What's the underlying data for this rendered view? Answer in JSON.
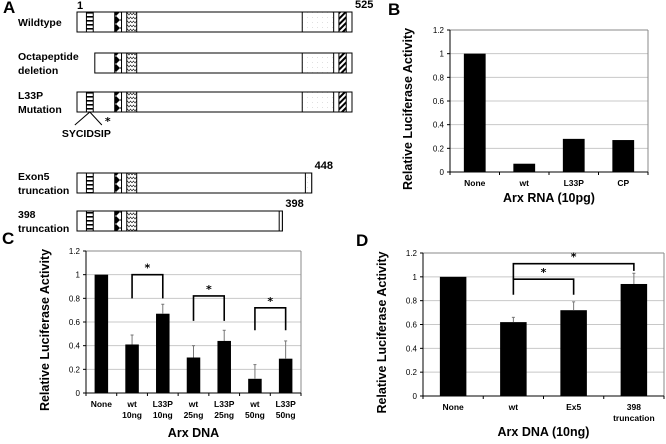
{
  "panel_a": {
    "letter": "A",
    "start_label": "1",
    "constructs": [
      {
        "label_lines": [
          "Wildtype"
        ],
        "end_label": "525",
        "start": 1,
        "end": 525,
        "octapeptide": true,
        "mutated": false,
        "domains": [
          "octapeptide",
          "acidic-diamond",
          "homeodomain-wave",
          "dotted",
          "hatched"
        ]
      },
      {
        "label_lines": [
          "Octapeptide",
          "deletion"
        ],
        "end_label": "",
        "start": 1,
        "end": 525,
        "octapeptide": false,
        "mutated": false,
        "domains": [
          "acidic-diamond",
          "homeodomain-wave",
          "dotted",
          "hatched"
        ]
      },
      {
        "label_lines": [
          "L33P",
          "Mutation"
        ],
        "end_label": "",
        "start": 1,
        "end": 525,
        "octapeptide": true,
        "mutated": true,
        "domains": [
          "octapeptide",
          "acidic-diamond",
          "homeodomain-wave",
          "dotted",
          "hatched"
        ]
      },
      {
        "label_lines": [
          "Exon5",
          "truncation"
        ],
        "end_label": "448",
        "start": 1,
        "end": 448,
        "octapeptide": true,
        "mutated": false,
        "domains": [
          "octapeptide",
          "acidic-diamond",
          "homeodomain-wave",
          "dotted"
        ]
      },
      {
        "label_lines": [
          "398",
          "truncation"
        ],
        "end_label": "398",
        "start": 1,
        "end": 398,
        "octapeptide": true,
        "mutated": false,
        "domains": [
          "octapeptide",
          "acidic-diamond",
          "homeodomain-wave",
          "dotted"
        ]
      }
    ],
    "motif_sequence": "SYCIDSIP",
    "mutation_marker": "*"
  },
  "chart_data": [
    {
      "panel": "B",
      "type": "bar",
      "title": "",
      "xlabel": "Arx RNA (10pg)",
      "ylabel": "Relative Luciferase Activity",
      "ylim": [
        0,
        1.2
      ],
      "yticks": [
        "0",
        "0.2",
        "0.4",
        "0.6",
        "0.8",
        "1",
        "1.2"
      ],
      "grid": true,
      "categories": [
        [
          "None"
        ],
        [
          "wt"
        ],
        [
          "L33P"
        ],
        [
          "CP"
        ]
      ],
      "values": [
        1.0,
        0.07,
        0.28,
        0.27
      ],
      "errors": [],
      "significance": []
    },
    {
      "panel": "C",
      "type": "bar",
      "title": "",
      "xlabel": "Arx DNA",
      "ylabel": "Relative Luciferase Activity",
      "ylim": [
        0,
        1.2
      ],
      "yticks": [
        "0",
        "0.2",
        "0.4",
        "0.6",
        "0.8",
        "1",
        "1.2"
      ],
      "grid": true,
      "categories": [
        [
          "None"
        ],
        [
          "wt",
          "10ng"
        ],
        [
          "L33P",
          "10ng"
        ],
        [
          "wt",
          "25ng"
        ],
        [
          "L33P",
          "25ng"
        ],
        [
          "wt",
          "50ng"
        ],
        [
          "L33P",
          "50ng"
        ]
      ],
      "values": [
        1.0,
        0.41,
        0.67,
        0.3,
        0.44,
        0.12,
        0.29
      ],
      "errors": [
        0,
        0.08,
        0.08,
        0.1,
        0.09,
        0.12,
        0.15
      ],
      "significance": [
        {
          "from": 1,
          "to": 2,
          "level": 1.0,
          "drop_to": 0.8,
          "label": "*"
        },
        {
          "from": 3,
          "to": 4,
          "level": 0.82,
          "drop_to": 0.61,
          "label": "*"
        },
        {
          "from": 5,
          "to": 6,
          "level": 0.72,
          "drop_to": 0.53,
          "label": "*"
        }
      ]
    },
    {
      "panel": "D",
      "type": "bar",
      "title": "",
      "xlabel": "Arx DNA (10ng)",
      "ylabel": "Relative Luciferase Activity",
      "ylim": [
        0,
        1.2
      ],
      "yticks": [
        "0",
        "0.2",
        "0.4",
        "0.6",
        "0.8",
        "1",
        "1.2"
      ],
      "grid": true,
      "categories": [
        [
          "None"
        ],
        [
          "wt"
        ],
        [
          "Ex5"
        ],
        [
          "398",
          "truncation"
        ]
      ],
      "values": [
        1.0,
        0.62,
        0.72,
        0.94
      ],
      "errors": [
        0,
        0.04,
        0.07,
        0.09
      ],
      "significance": [
        {
          "from": 1,
          "to": 2,
          "level": 0.98,
          "drop_to": 0.85,
          "label": "*"
        },
        {
          "from": 1,
          "to": 3,
          "level": 1.11,
          "drop_to": 1.05,
          "drop_from": 0.98,
          "label": "*"
        }
      ]
    }
  ],
  "panel_letters": {
    "b": "B",
    "c": "C",
    "d": "D"
  }
}
